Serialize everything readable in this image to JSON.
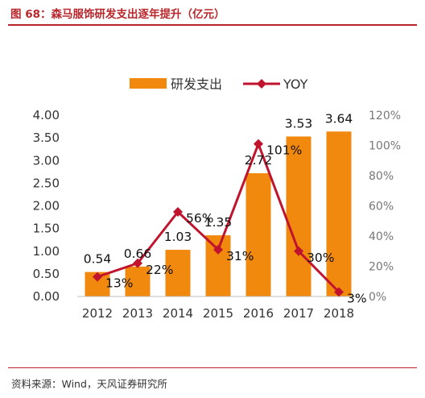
{
  "figure": {
    "title": "图 68：森马服饰研发支出逐年提升（亿元）",
    "source": "资料来源：Wind，天风证券研究所"
  },
  "colors": {
    "title": "#b8262b",
    "bar": "#f0890d",
    "line": "#c0142e"
  },
  "chart_data": {
    "type": "bar",
    "categories": [
      "2012",
      "2013",
      "2014",
      "2015",
      "2016",
      "2017",
      "2018"
    ],
    "series": [
      {
        "name": "研发支出",
        "type": "bar",
        "axis": "left",
        "values": [
          0.54,
          0.66,
          1.03,
          1.35,
          2.72,
          3.53,
          3.64
        ],
        "labels": [
          "0.54",
          "0.66",
          "1.03",
          "1.35",
          "2.72",
          "3.53",
          "3.64"
        ]
      },
      {
        "name": "YOY",
        "type": "line",
        "axis": "right",
        "values": [
          13,
          22,
          56,
          31,
          101,
          30,
          3
        ],
        "labels": [
          "13%",
          "22%",
          "56%",
          "31%",
          "101%",
          "30%",
          "3%"
        ]
      }
    ],
    "y_left": {
      "min": 0,
      "max": 4,
      "step": 0.5,
      "ticks": [
        "0.00",
        "0.50",
        "1.00",
        "1.50",
        "2.00",
        "2.50",
        "3.00",
        "3.50",
        "4.00"
      ]
    },
    "y_right": {
      "min": 0,
      "max": 120,
      "step": 20,
      "ticks": [
        "0%",
        "20%",
        "40%",
        "60%",
        "80%",
        "100%",
        "120%"
      ]
    },
    "legend": {
      "position": "top-center",
      "items": [
        "研发支出",
        "YOY"
      ]
    },
    "grid": false
  }
}
